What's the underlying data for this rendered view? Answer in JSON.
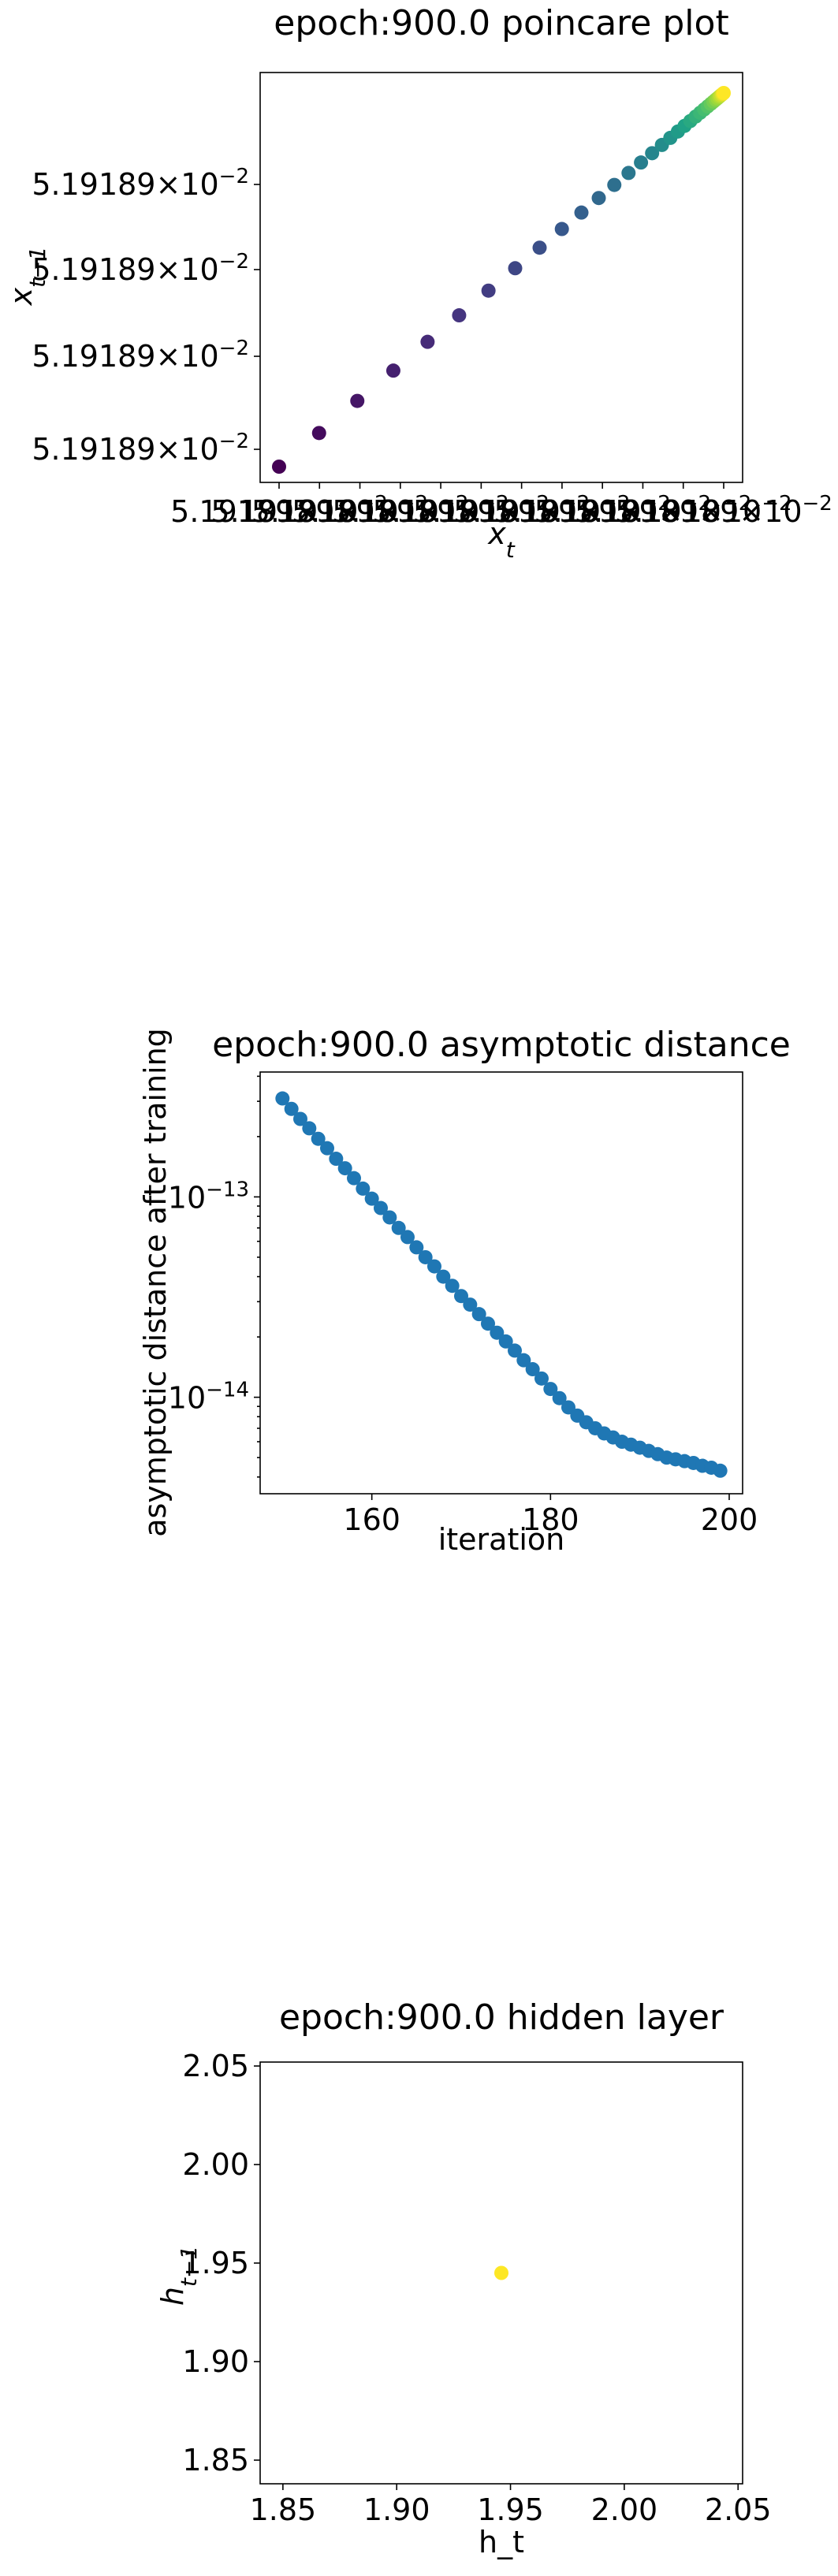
{
  "colors": {
    "dot_blue": "#1f77b4",
    "viridis": [
      "#440154",
      "#46327e",
      "#365c8d",
      "#277f8e",
      "#1fa187",
      "#4ac16d",
      "#a0da39",
      "#fde725"
    ]
  },
  "chart_data": [
    {
      "type": "scatter",
      "title": "epoch:900.0 poincare plot",
      "xlabel": "x_t",
      "ylabel": "x_{t-1}",
      "xtick_labels": [
        "5.19189×10⁻²",
        "5.19189×10⁻²",
        "5.19189×10⁻²",
        "5.19189×10⁻²",
        "5.19189×10⁻²",
        "5.19189×10⁻²",
        "5.19189×10⁻²",
        "5.19189×10⁻²",
        "5.19189×10⁻²",
        "5.19189×10⁻²",
        "5.19189×10⁻²",
        "5.19189×10⁻²"
      ],
      "ytick_labels": [
        "5.19189×10⁻²",
        "5.19189×10⁻²",
        "5.19189×10⁻²",
        "5.19189×10⁻²"
      ],
      "colormap": "viridis",
      "points": [
        [
          0.0,
          0.0
        ],
        [
          0.09,
          0.09
        ],
        [
          0.176,
          0.176
        ],
        [
          0.257,
          0.257
        ],
        [
          0.334,
          0.334
        ],
        [
          0.405,
          0.405
        ],
        [
          0.471,
          0.471
        ],
        [
          0.531,
          0.531
        ],
        [
          0.586,
          0.586
        ],
        [
          0.636,
          0.636
        ],
        [
          0.68,
          0.68
        ],
        [
          0.719,
          0.719
        ],
        [
          0.754,
          0.754
        ],
        [
          0.786,
          0.786
        ],
        [
          0.814,
          0.814
        ],
        [
          0.839,
          0.839
        ],
        [
          0.861,
          0.861
        ],
        [
          0.88,
          0.88
        ],
        [
          0.897,
          0.897
        ],
        [
          0.912,
          0.912
        ],
        [
          0.925,
          0.925
        ],
        [
          0.937,
          0.937
        ],
        [
          0.947,
          0.947
        ],
        [
          0.956,
          0.956
        ],
        [
          0.964,
          0.964
        ],
        [
          0.971,
          0.971
        ],
        [
          0.977,
          0.977
        ],
        [
          0.982,
          0.982
        ],
        [
          0.986,
          0.986
        ],
        [
          0.99,
          0.99
        ],
        [
          0.993,
          0.993
        ],
        [
          0.996,
          0.996
        ],
        [
          0.998,
          0.998
        ],
        [
          1.0,
          1.0
        ]
      ]
    },
    {
      "type": "scatter",
      "title": "epoch:900.0 asymptotic distance",
      "xlabel": "iteration",
      "ylabel": "asymptotic distance after training",
      "yscale": "log",
      "xlim": [
        147.5,
        201.5
      ],
      "ylim": [
        3.3e-15,
        4.2e-13
      ],
      "xticks": [
        160,
        180,
        200
      ],
      "yticks": [
        {
          "value": 1e-13,
          "label": "10",
          "exp": "−13"
        },
        {
          "value": 1e-14,
          "label": "10",
          "exp": "−14"
        }
      ],
      "x": [
        150,
        151,
        152,
        153,
        154,
        155,
        156,
        157,
        158,
        159,
        160,
        161,
        162,
        163,
        164,
        165,
        166,
        167,
        168,
        169,
        170,
        171,
        172,
        173,
        174,
        175,
        176,
        177,
        178,
        179,
        180,
        181,
        182,
        183,
        184,
        185,
        186,
        187,
        188,
        189,
        190,
        191,
        192,
        193,
        194,
        195,
        196,
        197,
        198,
        199
      ],
      "y": [
        3.1e-13,
        2.75e-13,
        2.45e-13,
        2.2e-13,
        1.95e-13,
        1.75e-13,
        1.55e-13,
        1.39e-13,
        1.24e-13,
        1.1e-13,
        9.8e-14,
        8.8e-14,
        7.9e-14,
        7e-14,
        6.3e-14,
        5.6e-14,
        5e-14,
        4.5e-14,
        4e-14,
        3.6e-14,
        3.2e-14,
        2.9e-14,
        2.6e-14,
        2.33e-14,
        2.1e-14,
        1.9e-14,
        1.71e-14,
        1.53e-14,
        1.38e-14,
        1.24e-14,
        1.1e-14,
        9.9e-15,
        8.9e-15,
        8.1e-15,
        7.5e-15,
        7e-15,
        6.6e-15,
        6.3e-15,
        6e-15,
        5.8e-15,
        5.6e-15,
        5.4e-15,
        5.2e-15,
        5e-15,
        4.9e-15,
        4.8e-15,
        4.7e-15,
        4.55e-15,
        4.45e-15,
        4.3e-15
      ],
      "color": "#1f77b4"
    },
    {
      "type": "scatter",
      "title": "epoch:900.0 hidden layer",
      "xlabel": "h_t",
      "ylabel": "h_{t-1}",
      "xlim": [
        1.84,
        2.052
      ],
      "ylim": [
        1.838,
        2.052
      ],
      "xticks": [
        "1.85",
        "1.90",
        "1.95",
        "2.00",
        "2.05"
      ],
      "yticks": [
        "1.85",
        "1.90",
        "1.95",
        "2.00",
        "2.05"
      ],
      "points": [
        [
          1.946,
          1.945
        ]
      ],
      "color": "#fde725"
    }
  ]
}
